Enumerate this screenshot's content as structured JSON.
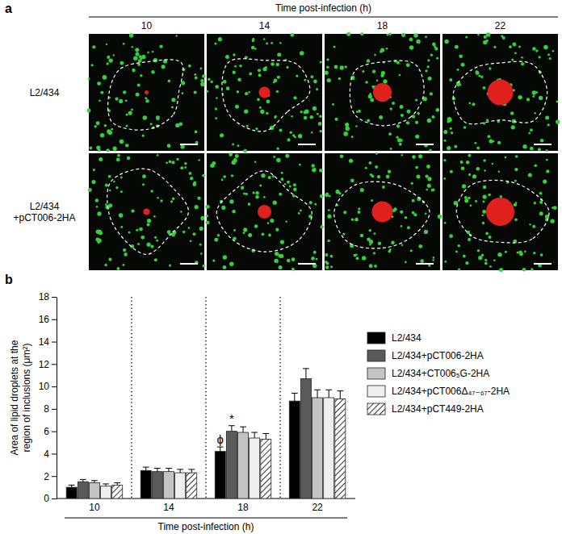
{
  "panel_a": {
    "label": "a",
    "title": "Time post-infection (h)",
    "columns": [
      "10",
      "14",
      "18",
      "22"
    ],
    "rows": [
      [
        "L2/434"
      ],
      [
        "L2/434",
        "+pCT006-2HA"
      ]
    ]
  },
  "chart_data": {
    "type": "bar",
    "label": "b",
    "categories": [
      "10",
      "14",
      "18",
      "22"
    ],
    "x_label": "Time post-infection (h)",
    "y_label": [
      "Area of lipid droplets at the",
      "region of inclusions (μm²)"
    ],
    "ylim": [
      0,
      18
    ],
    "yticks": [
      0,
      2,
      4,
      6,
      8,
      10,
      12,
      14,
      16,
      18
    ],
    "legend": "right",
    "series": [
      {
        "name": "L2/434",
        "color": "#000000",
        "values": [
          1.0,
          2.5,
          4.2,
          8.7
        ],
        "errors": [
          0.2,
          0.3,
          0.4,
          0.7
        ]
      },
      {
        "name": "L2/434+pCT006-2HA",
        "color": "#5a5a5a",
        "values": [
          1.5,
          2.4,
          6.0,
          10.7
        ],
        "errors": [
          0.2,
          0.3,
          0.5,
          0.9
        ]
      },
      {
        "name": "L2/434+CT006₅G-2HA",
        "color": "#c4c4c4",
        "values": [
          1.4,
          2.4,
          5.9,
          9.0
        ],
        "errors": [
          0.2,
          0.3,
          0.5,
          0.7
        ]
      },
      {
        "name": "L2/434+pCT006Δ₄₇₋₆₇-2HA",
        "color": "#efefef",
        "values": [
          1.1,
          2.3,
          5.4,
          9.0
        ],
        "errors": [
          0.2,
          0.3,
          0.5,
          0.7
        ]
      },
      {
        "name": "L2/434+pCT449-2HA",
        "color": "#ffffff",
        "values": [
          1.2,
          2.3,
          5.3,
          8.9
        ],
        "errors": [
          0.2,
          0.3,
          0.5,
          0.7
        ]
      }
    ],
    "annotations": [
      {
        "text": "ϕ",
        "category": "18",
        "series": "L2/434"
      },
      {
        "text": "*",
        "category": "18",
        "series": "L2/434+pCT006-2HA"
      }
    ]
  }
}
